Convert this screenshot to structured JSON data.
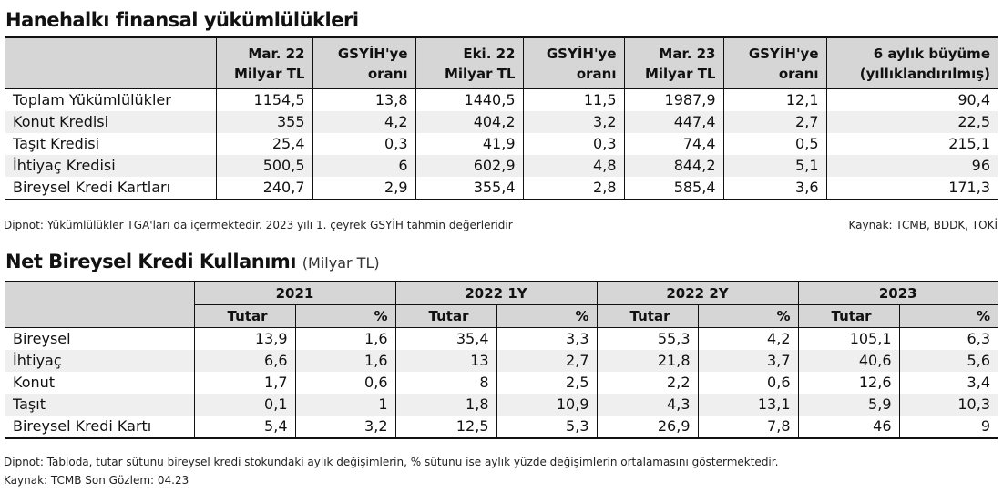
{
  "table1": {
    "title": "Hanehalkı finansal yükümlülükleri",
    "headers": [
      {
        "line1": "",
        "line2": ""
      },
      {
        "line1": "Mar. 22",
        "line2": "Milyar TL"
      },
      {
        "line1": "GSYİH'ye",
        "line2": "oranı"
      },
      {
        "line1": "Eki. 22",
        "line2": "Milyar TL"
      },
      {
        "line1": "GSYİH'ye",
        "line2": "oranı"
      },
      {
        "line1": "Mar. 23",
        "line2": "Milyar TL"
      },
      {
        "line1": "GSYİH'ye",
        "line2": "oranı"
      },
      {
        "line1": "6 aylık büyüme",
        "line2": "(yıllıklandırılmış)"
      }
    ],
    "rows": [
      [
        "Toplam Yükümlülükler",
        "1154,5",
        "13,8",
        "1440,5",
        "11,5",
        "1987,9",
        "12,1",
        "90,4"
      ],
      [
        "Konut Kredisi",
        "355",
        "4,2",
        "404,2",
        "3,2",
        "447,4",
        "2,7",
        "22,5"
      ],
      [
        "Taşıt Kredisi",
        "25,4",
        "0,3",
        "41,9",
        "0,3",
        "74,4",
        "0,5",
        "215,1"
      ],
      [
        "İhtiyaç Kredisi",
        "500,5",
        "6",
        "602,9",
        "4,8",
        "844,2",
        "5,1",
        "96"
      ],
      [
        "Bireysel Kredi Kartları",
        "240,7",
        "2,9",
        "355,4",
        "2,8",
        "585,4",
        "3,6",
        "171,3"
      ]
    ],
    "footnote": "Dipnot: Yükümlülükler TGA'ları da içermektedir. 2023 yılı 1. çeyrek GSYİH tahmin değerleridir",
    "source": "Kaynak: TCMB, BDDK, TOKİ"
  },
  "table2": {
    "title": "Net Bireysel Kredi Kullanımı",
    "title_unit": "(Milyar TL)",
    "groups": [
      "2021",
      "2022 1Y",
      "2022 2Y",
      "2023"
    ],
    "subheaders": [
      "Tutar",
      "%",
      "Tutar",
      "%",
      "Tutar",
      "%",
      "Tutar",
      "%"
    ],
    "rows": [
      [
        "Bireysel",
        "13,9",
        "1,6",
        "35,4",
        "3,3",
        "55,3",
        "4,2",
        "105,1",
        "6,3"
      ],
      [
        "İhtiyaç",
        "6,6",
        "1,6",
        "13",
        "2,7",
        "21,8",
        "3,7",
        "40,6",
        "5,6"
      ],
      [
        "Konut",
        "1,7",
        "0,6",
        "8",
        "2,5",
        "2,2",
        "0,6",
        "12,6",
        "3,4"
      ],
      [
        "Taşıt",
        "0,1",
        "1",
        "1,8",
        "10,9",
        "4,3",
        "13,1",
        "5,9",
        "10,3"
      ],
      [
        "Bireysel Kredi Kartı",
        "5,4",
        "3,2",
        "12,5",
        "5,3",
        "26,9",
        "7,8",
        "46",
        "9"
      ]
    ],
    "footnote": "Dipnot: Tabloda, tutar sütunu bireysel kredi stokundaki aylık değişimlerin, % sütunu ise aylık yüzde değişimlerin ortalamasını göstermektedir.",
    "source": "Kaynak: TCMB Son Gözlem: 04.23"
  }
}
